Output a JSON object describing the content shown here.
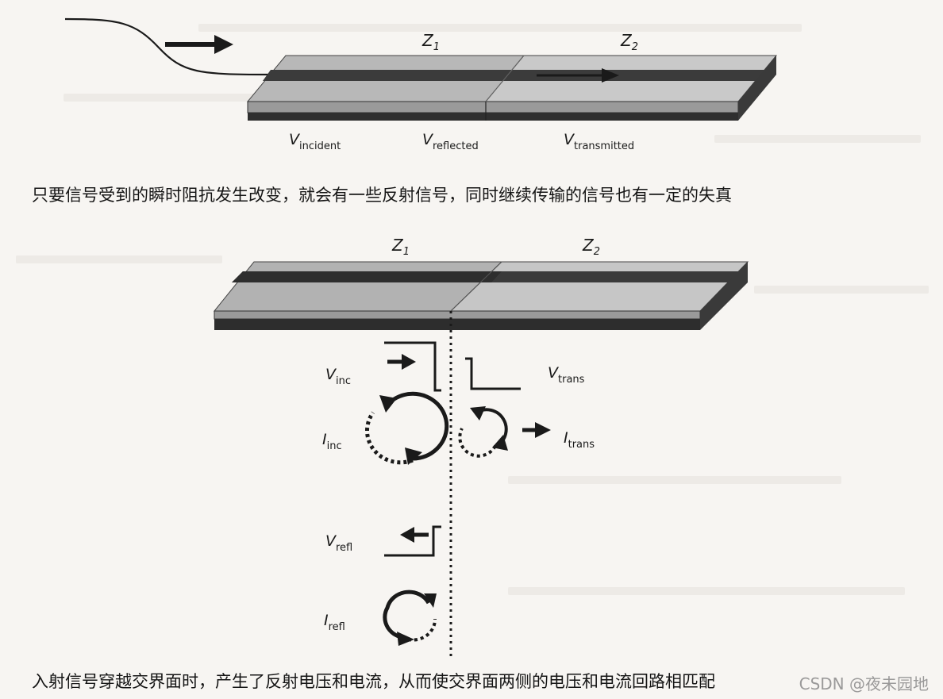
{
  "top_figure": {
    "z1": "Z",
    "z1_sub": "1",
    "z2": "Z",
    "z2_sub": "2",
    "v_incident": "V",
    "v_incident_sub": "incident",
    "v_reflected": "V",
    "v_reflected_sub": "reflected",
    "v_transmitted": "V",
    "v_transmitted_sub": "transmitted"
  },
  "caption1": "只要信号受到的瞬时阻抗发生改变，就会有一些反射信号，同时继续传输的信号也有一定的失真",
  "bottom_figure": {
    "z1": "Z",
    "z1_sub": "1",
    "z2": "Z",
    "z2_sub": "2",
    "v_inc": "V",
    "v_inc_sub": "inc",
    "v_trans": "V",
    "v_trans_sub": "trans",
    "i_inc": "I",
    "i_inc_sub": "inc",
    "i_trans": "I",
    "i_trans_sub": "trans",
    "v_refl": "V",
    "v_refl_sub": "refl",
    "i_refl": "I",
    "i_refl_sub": "refl"
  },
  "caption2": "入射信号穿越交界面时，产生了反射电压和电流，从而使交界面两侧的电压和电流回路相匹配",
  "watermark": "CSDN @夜未园地",
  "colors": {
    "board_top": "#b9b9b9",
    "board_top_right": "#c9c9c9",
    "trace": "#3d3d3d",
    "edge": "#2a2a2a",
    "ink": "#1a1a1a"
  }
}
